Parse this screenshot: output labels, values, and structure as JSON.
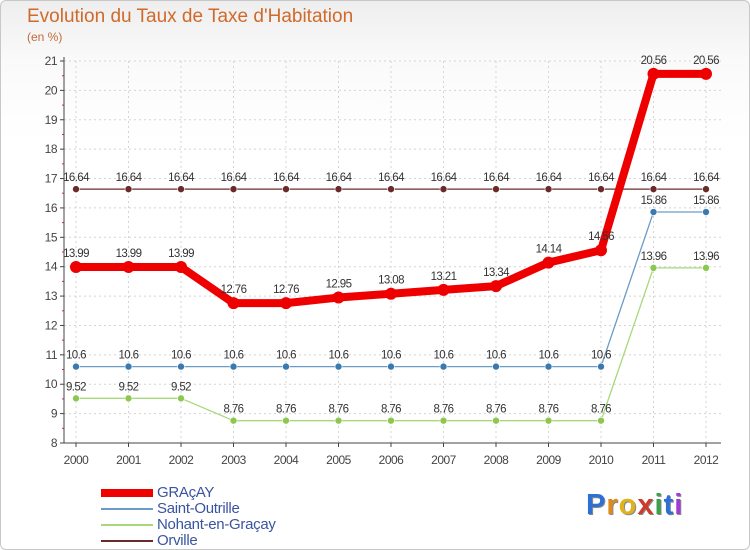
{
  "title": "Evolution du Taux de Taxe d'Habitation",
  "subtitle": "(en %)",
  "logo": {
    "letters": [
      "P",
      "r",
      "o",
      "x",
      "i",
      "t",
      "i"
    ],
    "colors": [
      "#2e6fd6",
      "#e08a1e",
      "#e0b21e",
      "#d03a2a",
      "#3aa04a",
      "#2e6fd6",
      "#a33ad6"
    ]
  },
  "chart_data": {
    "type": "line",
    "title": "Evolution du Taux de Taxe d'Habitation",
    "ylabel": "(en %)",
    "xlabel": "",
    "categories": [
      "2000",
      "2001",
      "2002",
      "2003",
      "2004",
      "2005",
      "2006",
      "2007",
      "2008",
      "2009",
      "2010",
      "2011",
      "2012"
    ],
    "ylim": [
      8,
      21
    ],
    "yticks": [
      "8",
      "9",
      "10",
      "11",
      "12",
      "13",
      "14",
      "15",
      "16",
      "17",
      "18",
      "19",
      "20",
      "21"
    ],
    "legend_position": "bottom-left",
    "series": [
      {
        "name": "Orville",
        "color": "#6b2a2a",
        "marker": "#6b2a2a",
        "weight": "thin",
        "values": [
          16.64,
          16.64,
          16.64,
          16.64,
          16.64,
          16.64,
          16.64,
          16.64,
          16.64,
          16.64,
          16.64,
          16.64,
          16.64
        ],
        "labels": [
          "16.64",
          "16.64",
          "16.64",
          "16.64",
          "16.64",
          "16.64",
          "16.64",
          "16.64",
          "16.64",
          "16.64",
          "16.64",
          "16.64",
          "16.64"
        ]
      },
      {
        "name": "Saint-Outrille",
        "color": "#6a9cc8",
        "marker": "#3a7ab0",
        "weight": "thin",
        "values": [
          10.6,
          10.6,
          10.6,
          10.6,
          10.6,
          10.6,
          10.6,
          10.6,
          10.6,
          10.6,
          10.6,
          15.86,
          15.86
        ],
        "labels": [
          "10.6",
          "10.6",
          "10.6",
          "10.6",
          "10.6",
          "10.6",
          "10.6",
          "10.6",
          "10.6",
          "10.6",
          "10.6",
          "15.86",
          "15.86"
        ]
      },
      {
        "name": "Nohant-en-Graçay",
        "color": "#a8d87a",
        "marker": "#8cc850",
        "weight": "thin",
        "values": [
          9.52,
          9.52,
          9.52,
          8.76,
          8.76,
          8.76,
          8.76,
          8.76,
          8.76,
          8.76,
          8.76,
          13.96,
          13.96
        ],
        "labels": [
          "9.52",
          "9.52",
          "9.52",
          "8.76",
          "8.76",
          "8.76",
          "8.76",
          "8.76",
          "8.76",
          "8.76",
          "8.76",
          "13.96",
          "13.96"
        ]
      },
      {
        "name": "GRAçAY",
        "color": "#ee0000",
        "marker": "#ee0000",
        "weight": "thick",
        "values": [
          13.99,
          13.99,
          13.99,
          12.76,
          12.76,
          12.95,
          13.08,
          13.21,
          13.34,
          14.14,
          14.56,
          20.56,
          20.56
        ],
        "labels": [
          "13.99",
          "13.99",
          "13.99",
          "12.76",
          "12.76",
          "12.95",
          "13.08",
          "13.21",
          "13.34",
          "14.14",
          "14.56",
          "20.56",
          "20.56"
        ]
      }
    ],
    "legend_order": [
      "GRAçAY",
      "Saint-Outrille",
      "Nohant-en-Graçay",
      "Orville"
    ]
  }
}
